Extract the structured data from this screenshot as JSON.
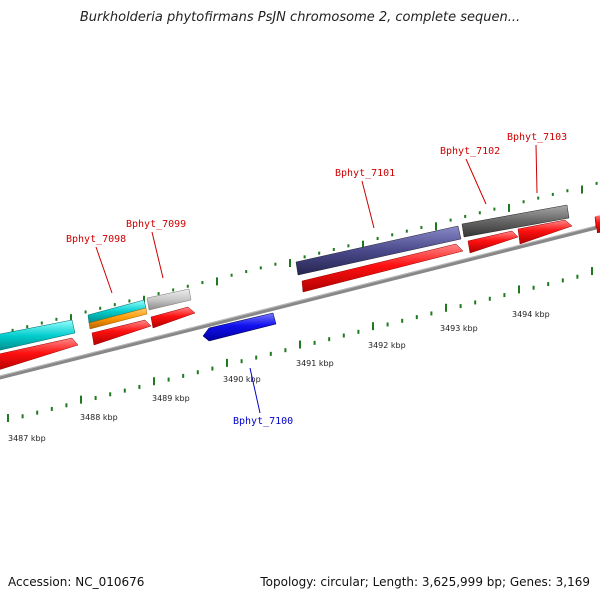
{
  "title": "Burkholderia phytofirmans PsJN chromosome 2, complete sequen...",
  "footer": {
    "accession": "Accession: NC_010676",
    "summary": "Topology: circular; Length: 3,625,999 bp; Genes: 3,169"
  },
  "colors": {
    "forward_cds": "#ff0000",
    "reverse_cds": "#0000ee",
    "backbone": "#888888",
    "tick": "#1e7a1e",
    "label_forward": "#cc0000",
    "label_reverse": "#0000cc",
    "cyan": "#00cccc",
    "orange": "#ff9900",
    "light_grey": "#c8c8c8",
    "purple": "#4a4a8c",
    "dark_grey": "#666666"
  },
  "kbp_ticks": [
    "3487 kbp",
    "3488 kbp",
    "3489 kbp",
    "3490 kbp",
    "3491 kbp",
    "3492 kbp",
    "3493 kbp",
    "3494 kbp"
  ],
  "gene_labels": [
    {
      "name": "Bphyt_7098",
      "strand": "forward"
    },
    {
      "name": "Bphyt_7099",
      "strand": "forward"
    },
    {
      "name": "Bphyt_7100",
      "strand": "reverse"
    },
    {
      "name": "Bphyt_7101",
      "strand": "forward"
    },
    {
      "name": "Bphyt_7102",
      "strand": "forward"
    },
    {
      "name": "Bphyt_7103",
      "strand": "forward"
    }
  ]
}
